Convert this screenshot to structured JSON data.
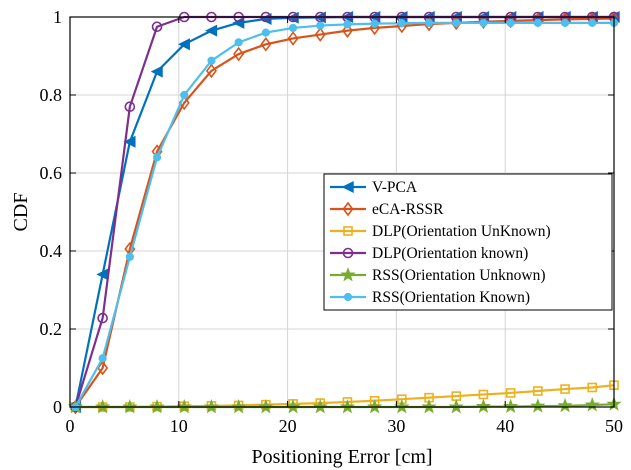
{
  "chart_data": {
    "type": "line",
    "xlabel": "Positioning Error [cm]",
    "ylabel": "CDF",
    "xlim": [
      0,
      50
    ],
    "ylim": [
      0,
      1
    ],
    "xticks": [
      "0",
      "10",
      "20",
      "30",
      "40",
      "50"
    ],
    "yticks": [
      "0",
      "0.2",
      "0.4",
      "0.6",
      "0.8",
      "1"
    ],
    "grid": true,
    "legend_position": "center-right",
    "x": [
      0.5,
      3,
      5.5,
      8,
      10.5,
      13,
      15.5,
      18,
      20.5,
      23,
      25.5,
      28,
      30.5,
      33,
      35.5,
      38,
      40.5,
      43,
      45.5,
      48,
      50
    ],
    "series": [
      {
        "name": "V-PCA",
        "color": "#0072BD",
        "marker": "triangle-left",
        "values": [
          0,
          0.34,
          0.68,
          0.86,
          0.93,
          0.965,
          0.985,
          0.995,
          0.998,
          0.999,
          1,
          1,
          1,
          1,
          1,
          1,
          1,
          1,
          1,
          1,
          1
        ]
      },
      {
        "name": "eCA-RSSR",
        "color": "#D95319",
        "marker": "diamond",
        "values": [
          0,
          0.1,
          0.405,
          0.655,
          0.78,
          0.862,
          0.905,
          0.93,
          0.945,
          0.955,
          0.965,
          0.972,
          0.977,
          0.982,
          0.985,
          0.988,
          0.99,
          0.992,
          0.994,
          0.995,
          0.996
        ]
      },
      {
        "name": "DLP(Orientation UnKnown)",
        "color": "#EDB120",
        "marker": "square",
        "values": [
          0,
          0,
          0,
          0.001,
          0.002,
          0.003,
          0.004,
          0.006,
          0.008,
          0.01,
          0.013,
          0.016,
          0.02,
          0.024,
          0.028,
          0.032,
          0.036,
          0.041,
          0.046,
          0.05,
          0.056
        ]
      },
      {
        "name": "DLP(Orientation known)",
        "color": "#7E2F8E",
        "marker": "circle",
        "values": [
          0,
          0.228,
          0.77,
          0.975,
          1,
          1,
          1,
          1,
          1,
          1,
          1,
          1,
          1,
          1,
          1,
          1,
          1,
          1,
          1,
          1,
          1
        ]
      },
      {
        "name": "RSS(Orientation Unknown)",
        "color": "#77AC30",
        "marker": "star",
        "values": [
          0,
          0,
          0,
          0,
          0,
          0,
          0,
          0,
          0,
          0,
          0,
          0,
          0,
          0,
          0,
          0.001,
          0.001,
          0.002,
          0.003,
          0.005,
          0.007
        ]
      },
      {
        "name": "RSS(Orientation Known)",
        "color": "#4DBEEE",
        "marker": "filled-circle",
        "values": [
          0,
          0.125,
          0.385,
          0.64,
          0.8,
          0.888,
          0.935,
          0.96,
          0.972,
          0.978,
          0.981,
          0.983,
          0.984,
          0.985,
          0.985,
          0.985,
          0.985,
          0.985,
          0.985,
          0.985,
          0.985
        ]
      }
    ]
  }
}
